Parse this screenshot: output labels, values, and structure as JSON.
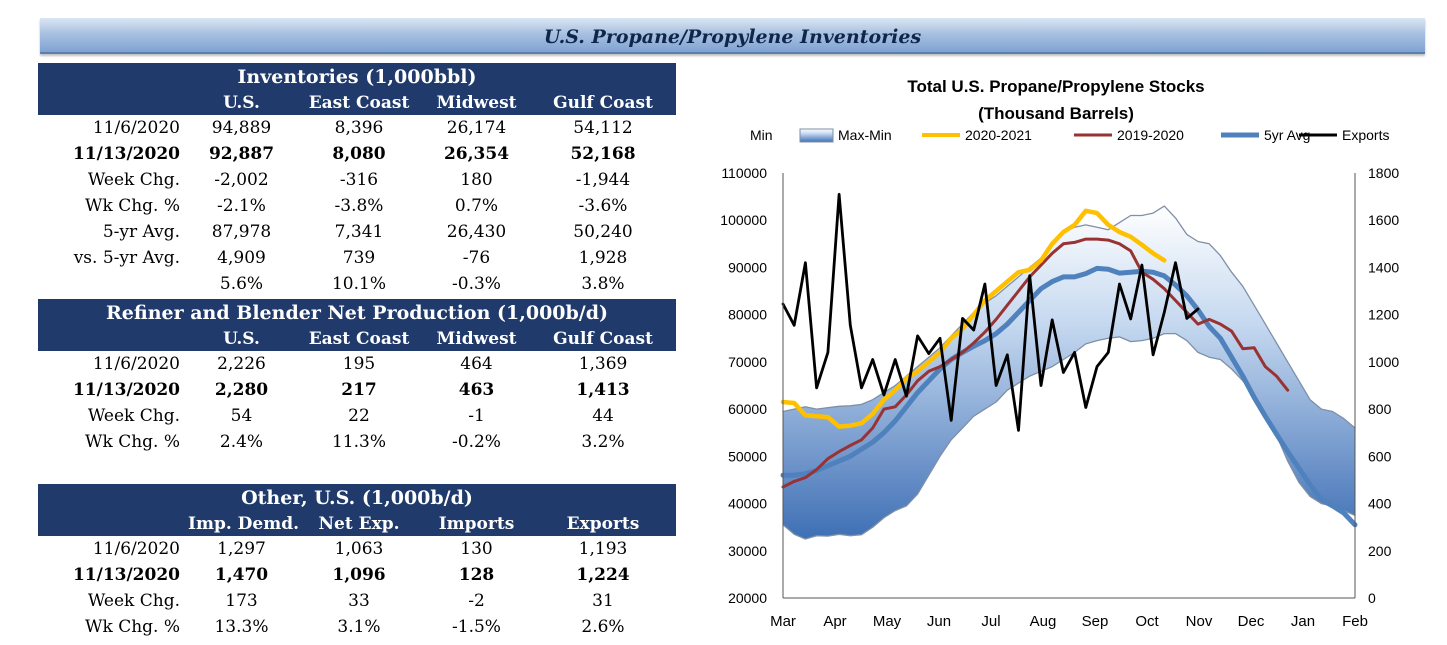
{
  "title": "U.S. Propane/Propylene Inventories",
  "inventories": {
    "header": "Inventories (1,000bbl)",
    "columns": [
      "",
      "U.S.",
      "East Coast",
      "Midwest",
      "Gulf Coast"
    ],
    "rows": [
      {
        "label": "11/6/2020",
        "values": [
          "94,889",
          "8,396",
          "26,174",
          "54,112"
        ]
      },
      {
        "label": "11/13/2020",
        "values": [
          "92,887",
          "8,080",
          "26,354",
          "52,168"
        ]
      },
      {
        "label": "Week Chg.",
        "values": [
          "-2,002",
          "-316",
          "180",
          "-1,944"
        ]
      },
      {
        "label": "Wk Chg. %",
        "values": [
          "-2.1%",
          "-3.8%",
          "0.7%",
          "-3.6%"
        ]
      },
      {
        "label": "5-yr Avg.",
        "values": [
          "87,978",
          "7,341",
          "26,430",
          "50,240"
        ]
      },
      {
        "label": "vs. 5-yr Avg.",
        "values": [
          "4,909",
          "739",
          "-76",
          "1,928"
        ]
      },
      {
        "label": "",
        "values": [
          "5.6%",
          "10.1%",
          "-0.3%",
          "3.8%"
        ]
      }
    ]
  },
  "production": {
    "header": "Refiner and Blender Net Production (1,000b/d)",
    "columns": [
      "",
      "U.S.",
      "East Coast",
      "Midwest",
      "Gulf Coast"
    ],
    "rows": [
      {
        "label": "11/6/2020",
        "values": [
          "2,226",
          "195",
          "464",
          "1,369"
        ]
      },
      {
        "label": "11/13/2020",
        "values": [
          "2,280",
          "217",
          "463",
          "1,413"
        ]
      },
      {
        "label": "Week Chg.",
        "values": [
          "54",
          "22",
          "-1",
          "44"
        ]
      },
      {
        "label": "Wk Chg. %",
        "values": [
          "2.4%",
          "11.3%",
          "-0.2%",
          "3.2%"
        ]
      }
    ]
  },
  "other": {
    "header": "Other, U.S. (1,000b/d)",
    "columns": [
      "",
      "Imp. Demd.",
      "Net Exp.",
      "Imports",
      "Exports"
    ],
    "rows": [
      {
        "label": "11/6/2020",
        "values": [
          "1,297",
          "1,063",
          "130",
          "1,193"
        ]
      },
      {
        "label": "11/13/2020",
        "values": [
          "1,470",
          "1,096",
          "128",
          "1,224"
        ]
      },
      {
        "label": "Week Chg.",
        "values": [
          "173",
          "33",
          "-2",
          "31"
        ]
      },
      {
        "label": "Wk Chg. %",
        "values": [
          "13.3%",
          "3.1%",
          "-1.5%",
          "2.6%"
        ]
      }
    ]
  },
  "chart_data": {
    "type": "line",
    "title": "Total U.S. Propane/Propylene Stocks",
    "subtitle": "(Thousand Barrels)",
    "legend": [
      "Min",
      "Max-Min",
      "2020-2021",
      "2019-2020",
      "5yr Avg",
      "Exports"
    ],
    "x_ticks": [
      "Mar",
      "Apr",
      "May",
      "Jun",
      "Jul",
      "Aug",
      "Sep",
      "Oct",
      "Nov",
      "Dec",
      "Jan",
      "Feb"
    ],
    "ylim": [
      20000,
      110000
    ],
    "y_ticks": [
      20000,
      30000,
      40000,
      50000,
      60000,
      70000,
      80000,
      90000,
      100000,
      110000
    ],
    "y2lim": [
      0,
      1800
    ],
    "y2_ticks": [
      0,
      200,
      400,
      600,
      800,
      1000,
      1200,
      1400,
      1600,
      1800
    ],
    "weeks": 52,
    "series": [
      {
        "name": "Min",
        "axis": "left",
        "color": "#7f8fa6",
        "values": [
          35500,
          33500,
          32500,
          33200,
          33100,
          33500,
          33200,
          33400,
          35000,
          37000,
          38500,
          39500,
          42000,
          46000,
          50000,
          53500,
          56000,
          58500,
          60000,
          61500,
          64000,
          65500,
          67000,
          68000,
          69000,
          70500,
          72000,
          73800,
          74500,
          75000,
          75300,
          74300,
          74500,
          75000,
          76000,
          76000,
          74500,
          72000,
          71000,
          70500,
          68500,
          66000,
          63000,
          59000,
          54500,
          49000,
          44500,
          41500,
          40000,
          39500,
          38500,
          37500
        ]
      },
      {
        "name": "Max",
        "axis": "left",
        "color": "#7f8fa6",
        "values": [
          59500,
          60000,
          60500,
          60000,
          60300,
          60600,
          60700,
          61000,
          62000,
          63500,
          65000,
          67000,
          69000,
          71000,
          73000,
          75500,
          78000,
          80500,
          82500,
          84000,
          86000,
          88000,
          90000,
          92000,
          94500,
          97500,
          98500,
          99000,
          98500,
          98000,
          99500,
          101000,
          101000,
          101500,
          103000,
          100500,
          97000,
          95500,
          95000,
          92500,
          89000,
          86000,
          82000,
          78000,
          74000,
          70000,
          66000,
          62000,
          60000,
          59500,
          58000,
          56000
        ]
      },
      {
        "name": "5yr Avg",
        "axis": "left",
        "color": "#4f81bd",
        "values": [
          46000,
          46000,
          46300,
          47000,
          48000,
          49000,
          50000,
          51500,
          53000,
          55000,
          57500,
          60500,
          63500,
          66000,
          68500,
          70500,
          72000,
          73300,
          74500,
          76000,
          78000,
          80500,
          83000,
          85500,
          87000,
          88000,
          88000,
          88700,
          89800,
          89600,
          88800,
          89000,
          89200,
          89000,
          88200,
          86300,
          84000,
          81000,
          77500,
          75000,
          71000,
          67000,
          62500,
          58500,
          54700,
          51000,
          47500,
          44000,
          40800,
          39500,
          38000,
          35500
        ]
      },
      {
        "name": "2019-2020",
        "axis": "left",
        "color": "#993333",
        "values": [
          43500,
          44700,
          45500,
          47200,
          49500,
          51000,
          52300,
          53500,
          56000,
          60000,
          60500,
          63000,
          66000,
          68000,
          69000,
          70500,
          72000,
          74000,
          76300,
          79000,
          82000,
          85000,
          88000,
          90500,
          93000,
          95000,
          95300,
          96000,
          96000,
          95800,
          95000,
          93500,
          89000,
          87500,
          85500,
          83000,
          80500,
          78000,
          79000,
          78000,
          76500,
          72800,
          73000,
          69000,
          67000,
          64000
        ]
      },
      {
        "name": "2020-2021",
        "axis": "left",
        "color": "#ffc000",
        "values": [
          61500,
          61300,
          58700,
          58500,
          58300,
          56300,
          56500,
          57000,
          59000,
          62000,
          64000,
          66500,
          68000,
          70000,
          72000,
          75000,
          77000,
          80000,
          83000,
          85000,
          87000,
          89000,
          89500,
          91500,
          95000,
          97500,
          99000,
          102000,
          101500,
          99000,
          97500,
          96500,
          94800,
          93000,
          91500
        ]
      },
      {
        "name": "Exports",
        "axis": "right",
        "color": "#000000",
        "values": [
          1245,
          1155,
          1420,
          890,
          1040,
          1710,
          1155,
          890,
          1010,
          860,
          1010,
          855,
          1110,
          1035,
          1100,
          752,
          1184,
          1135,
          1330,
          900,
          1030,
          710,
          1365,
          900,
          1178,
          955,
          1040,
          807,
          980,
          1040,
          1330,
          1182,
          1410,
          1030,
          1210,
          1420,
          1184,
          1224
        ]
      }
    ]
  }
}
